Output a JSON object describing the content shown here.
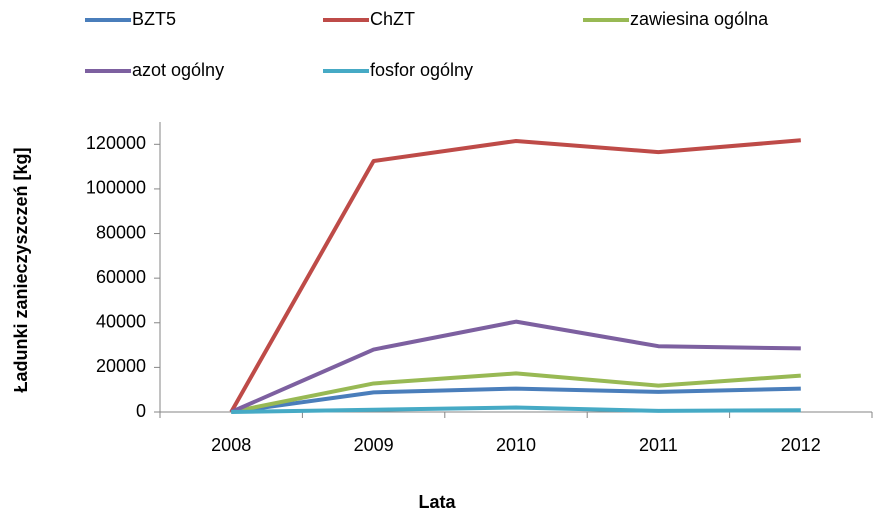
{
  "chart_data": {
    "type": "line",
    "x_label": "Lata",
    "y_label": "Ładunki zanieczyszczeń [kg]",
    "categories": [
      "2008",
      "2009",
      "2010",
      "2011",
      "2012"
    ],
    "series": [
      {
        "name": "BZT5",
        "color": "#4a7ebb",
        "values": [
          0,
          8800,
          10500,
          9000,
          10500
        ]
      },
      {
        "name": "ChZT",
        "color": "#be4b48",
        "values": [
          0,
          112500,
          121500,
          116500,
          121800
        ]
      },
      {
        "name": "zawiesina ogólna",
        "color": "#98b954",
        "values": [
          0,
          12800,
          17300,
          11800,
          16300
        ]
      },
      {
        "name": "azot ogólny",
        "color": "#7d60a0",
        "values": [
          0,
          28000,
          40500,
          29500,
          28500
        ]
      },
      {
        "name": "fosfor ogólny",
        "color": "#46aac5",
        "values": [
          0,
          1000,
          2000,
          500,
          800
        ]
      }
    ],
    "ylim": [
      0,
      130000
    ],
    "yticks": [
      0,
      20000,
      40000,
      60000,
      80000,
      100000,
      120000
    ],
    "grid": false,
    "legend": "top"
  }
}
